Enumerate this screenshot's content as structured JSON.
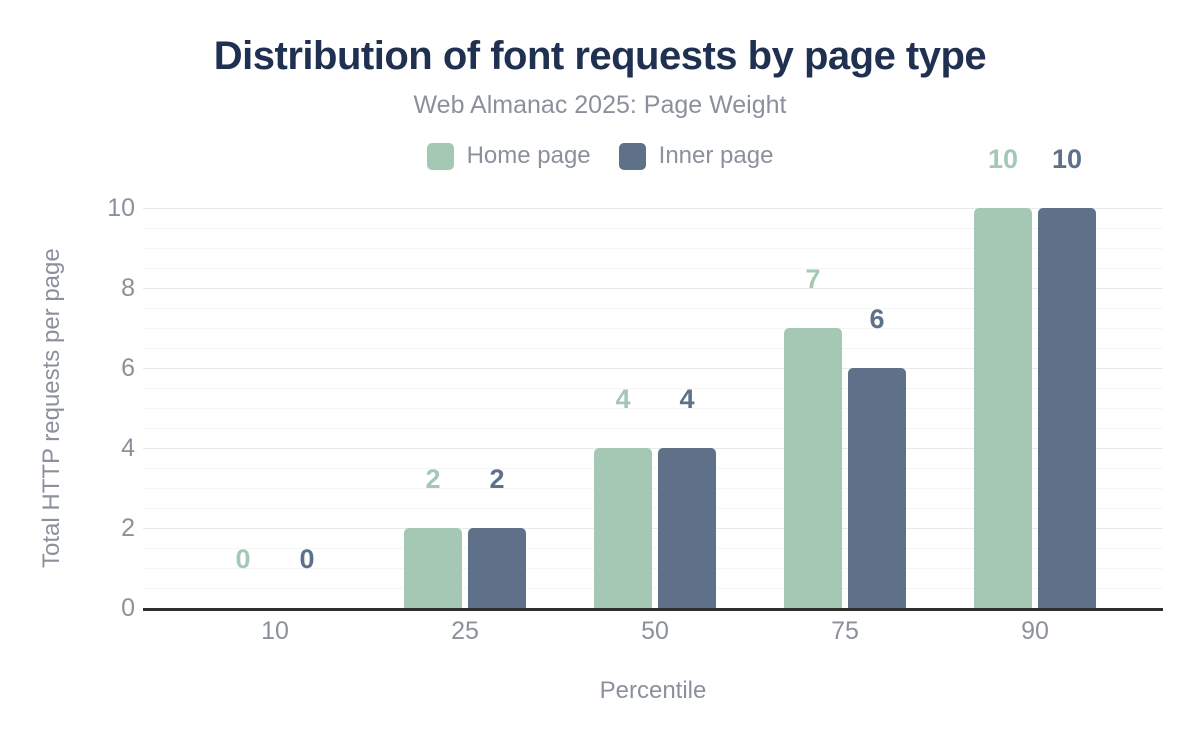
{
  "chart_data": {
    "type": "bar",
    "title": "Distribution of font requests by page type",
    "subtitle": "Web Almanac 2025: Page Weight",
    "xlabel": "Percentile",
    "ylabel": "Total HTTP requests per page",
    "categories": [
      "10",
      "25",
      "50",
      "75",
      "90"
    ],
    "series": [
      {
        "name": "Home page",
        "color": "#a5c8b5",
        "values": [
          0,
          2,
          4,
          7,
          10
        ]
      },
      {
        "name": "Inner page",
        "color": "#5e7189",
        "values": [
          0,
          2,
          4,
          6,
          10
        ]
      }
    ],
    "yticks": [
      0,
      2,
      4,
      6,
      8,
      10
    ],
    "ylim": [
      0,
      10
    ],
    "grid": {
      "orientation": "horizontal",
      "major_interval": 2,
      "minor_interval": 0.5
    },
    "legend_position": "top",
    "bar_labels": "value shown above each bar in its series color"
  },
  "theme": {
    "title_color": "#1f3050",
    "axis_text_color": "#8b919c",
    "background": "#ffffff",
    "baseline_color": "#2e2e2e"
  }
}
